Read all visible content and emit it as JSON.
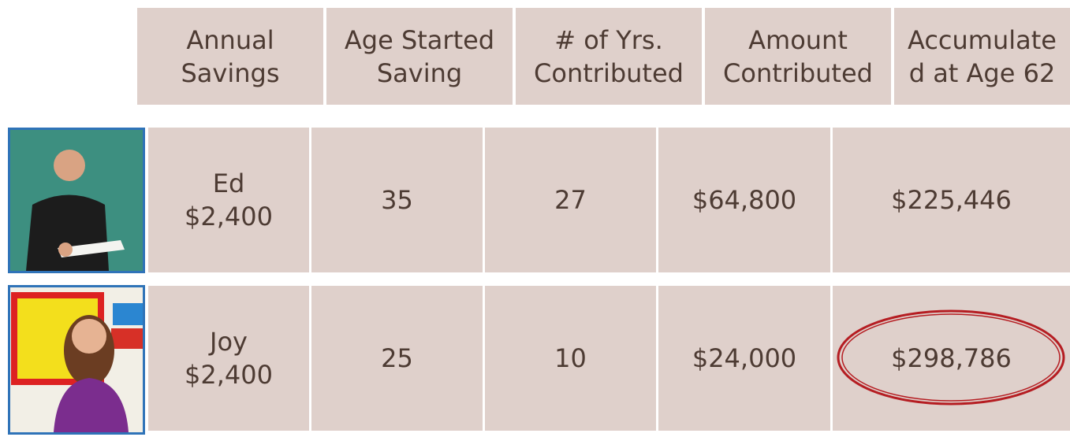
{
  "table": {
    "header": [
      [
        "Annual",
        "Savings"
      ],
      [
        "Age Started",
        "Saving"
      ],
      [
        "# of Yrs.",
        "Contributed"
      ],
      [
        "Amount",
        "Contributed"
      ],
      [
        "Accumulate",
        "d at Age 62"
      ]
    ],
    "rows": [
      [
        "Ed",
        "$2,400",
        "35",
        "27",
        "$64,800",
        "$225,446"
      ],
      [
        "Joy",
        "$2,400",
        "25",
        "10",
        "$24,000",
        "$298,786"
      ]
    ]
  }
}
